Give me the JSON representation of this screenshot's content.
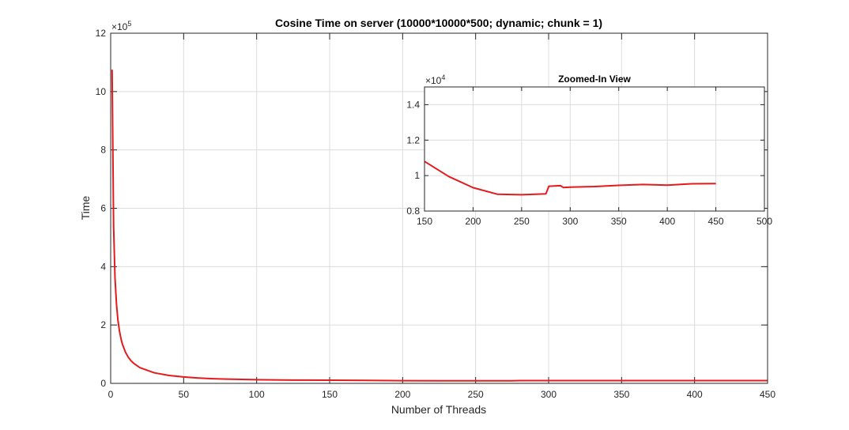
{
  "chart_data": [
    {
      "type": "line",
      "title": "Cosine Time on server (10000*10000*500; dynamic; chunk = 1)",
      "xlabel": "Number of Threads",
      "ylabel": "Time",
      "xlim": [
        0,
        450
      ],
      "ylim": [
        0,
        1200000
      ],
      "xticks": [
        0,
        50,
        100,
        150,
        200,
        250,
        300,
        350,
        400,
        450
      ],
      "yticks": [
        0,
        2,
        4,
        6,
        8,
        10,
        12
      ],
      "y_exponent_label": "×10^5",
      "y_exponent_base": "×10",
      "y_exponent_power": "5",
      "y_scale": 100000,
      "grid": true,
      "color": "#e41a1c",
      "series": [
        {
          "x": [
            1,
            2,
            3,
            4,
            5,
            6,
            7,
            8,
            10,
            12,
            14,
            16,
            20,
            25,
            30,
            40,
            50,
            60,
            70,
            80,
            100,
            125,
            150,
            175,
            200,
            225,
            250,
            275,
            280,
            290,
            300,
            350,
            400,
            450
          ],
          "values": [
            1075000,
            540000,
            360000,
            270000,
            216000,
            180000,
            155000,
            135000,
            108000,
            90000,
            77000,
            68000,
            54000,
            45000,
            36000,
            27000,
            22000,
            18500,
            16000,
            14500,
            12500,
            11000,
            10800,
            10000,
            9300,
            8950,
            8920,
            8970,
            9400,
            9450,
            9350,
            9450,
            9450,
            9550
          ]
        }
      ]
    },
    {
      "type": "line",
      "title": "Zoomed-In View",
      "xlim": [
        150,
        500
      ],
      "ylim": [
        8000,
        15000
      ],
      "xticks": [
        150,
        200,
        250,
        300,
        350,
        400,
        450,
        500
      ],
      "yticks": [
        0.8,
        1,
        1.2,
        1.4
      ],
      "y_exponent_label": "×10^4",
      "y_exponent_base": "×10",
      "y_exponent_power": "4",
      "y_scale": 10000,
      "grid": true,
      "color": "#e41a1c",
      "series": [
        {
          "x": [
            150,
            175,
            200,
            225,
            250,
            275,
            278,
            290,
            293,
            300,
            325,
            350,
            375,
            400,
            425,
            450
          ],
          "values": [
            10800,
            9950,
            9320,
            8950,
            8920,
            8970,
            9400,
            9430,
            9330,
            9350,
            9380,
            9450,
            9500,
            9460,
            9540,
            9550
          ]
        }
      ]
    }
  ]
}
